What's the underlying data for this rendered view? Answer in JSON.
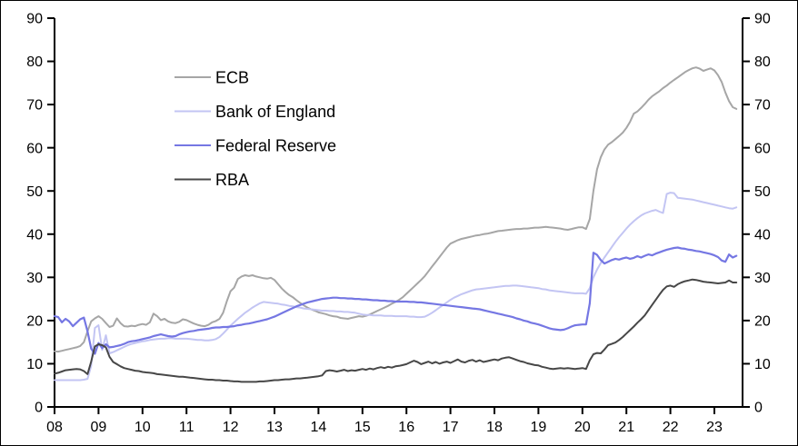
{
  "window": {
    "background": "#ffffff",
    "border_color": "#000000"
  },
  "chart_data": {
    "type": "line",
    "title": "",
    "description": "Four-line time series, monthly Jan 2008 - Jul 2023, dual identical y-axes 0-90, no gridlines, legend inside upper-left",
    "grid": false,
    "legend_position": "upper-left-inside",
    "x_axis": {
      "start_year": 2008,
      "months_per_point": 1,
      "tick_labels": [
        "08",
        "09",
        "10",
        "11",
        "12",
        "13",
        "14",
        "15",
        "16",
        "17",
        "18",
        "19",
        "20",
        "21",
        "22",
        "23"
      ]
    },
    "y_axis": {
      "range": [
        0,
        90
      ],
      "ticks": [
        0,
        10,
        20,
        30,
        40,
        50,
        60,
        70,
        80,
        90
      ],
      "sides": "both"
    },
    "axis_color": "#000000",
    "series": [
      {
        "name": "ECB",
        "color": "#a6a6a6",
        "width": 2,
        "values": [
          12.9,
          12.8,
          13.0,
          13.2,
          13.4,
          13.6,
          13.8,
          14.1,
          15.0,
          17.5,
          19.8,
          20.5,
          21.0,
          20.4,
          19.4,
          18.5,
          18.8,
          20.5,
          19.4,
          18.7,
          18.6,
          18.8,
          18.7,
          19.0,
          19.2,
          19.0,
          19.6,
          21.6,
          21.0,
          20.1,
          20.4,
          19.8,
          19.5,
          19.4,
          19.7,
          20.3,
          20.1,
          19.7,
          19.3,
          19.0,
          18.8,
          18.7,
          19.0,
          19.6,
          19.9,
          20.4,
          21.8,
          24.5,
          26.8,
          27.6,
          29.6,
          30.2,
          30.5,
          30.3,
          30.5,
          30.2,
          30.0,
          29.8,
          29.7,
          29.9,
          29.4,
          28.4,
          27.4,
          26.6,
          25.9,
          25.4,
          24.7,
          24.1,
          23.5,
          23.0,
          22.6,
          22.3,
          21.9,
          21.7,
          21.5,
          21.2,
          21.0,
          20.9,
          20.6,
          20.5,
          20.4,
          20.6,
          20.8,
          21.0,
          20.9,
          21.1,
          21.4,
          21.8,
          22.2,
          22.6,
          23.0,
          23.4,
          23.9,
          24.3,
          24.8,
          25.4,
          26.2,
          27.0,
          27.8,
          28.6,
          29.4,
          30.3,
          31.4,
          32.5,
          33.6,
          34.7,
          35.8,
          36.9,
          37.8,
          38.2,
          38.6,
          38.9,
          39.1,
          39.3,
          39.5,
          39.7,
          39.8,
          40.0,
          40.1,
          40.3,
          40.5,
          40.7,
          40.8,
          40.9,
          41.0,
          41.1,
          41.2,
          41.2,
          41.3,
          41.3,
          41.4,
          41.5,
          41.5,
          41.6,
          41.7,
          41.6,
          41.5,
          41.4,
          41.3,
          41.1,
          41.0,
          41.2,
          41.4,
          41.6,
          41.6,
          41.2,
          43.5,
          50.0,
          55.0,
          57.8,
          59.6,
          60.7,
          61.3,
          62.0,
          62.7,
          63.5,
          64.6,
          66.0,
          67.9,
          68.4,
          69.2,
          70.1,
          71.1,
          71.9,
          72.5,
          73.1,
          73.8,
          74.4,
          75.1,
          75.7,
          76.3,
          76.9,
          77.5,
          78.0,
          78.4,
          78.6,
          78.3,
          77.8,
          78.1,
          78.4,
          77.9,
          76.8,
          75.2,
          72.8,
          70.8,
          69.4,
          69.0
        ]
      },
      {
        "name": "Bank of England",
        "color": "#c3c5f3",
        "width": 2,
        "values": [
          6.2,
          6.2,
          6.2,
          6.2,
          6.2,
          6.2,
          6.2,
          6.2,
          6.3,
          6.5,
          9.5,
          18.3,
          18.9,
          13.2,
          16.6,
          12.4,
          12.7,
          13.1,
          13.5,
          13.9,
          14.3,
          14.6,
          14.8,
          15.0,
          15.2,
          15.3,
          15.5,
          15.6,
          15.7,
          15.8,
          15.8,
          15.9,
          15.9,
          15.8,
          15.8,
          15.8,
          15.8,
          15.7,
          15.6,
          15.5,
          15.5,
          15.4,
          15.4,
          15.5,
          15.7,
          16.2,
          17.0,
          17.9,
          18.8,
          19.6,
          20.4,
          21.1,
          21.8,
          22.4,
          23.0,
          23.5,
          24.0,
          24.3,
          24.2,
          24.1,
          24.0,
          23.9,
          23.7,
          23.6,
          23.4,
          23.3,
          23.1,
          23.0,
          22.8,
          22.7,
          22.6,
          22.5,
          22.4,
          22.3,
          22.3,
          22.2,
          22.2,
          22.1,
          22.1,
          22.0,
          22.0,
          21.9,
          21.8,
          21.6,
          21.4,
          21.3,
          21.3,
          21.2,
          21.2,
          21.2,
          21.1,
          21.1,
          21.1,
          21.0,
          21.0,
          21.0,
          21.0,
          20.9,
          20.9,
          20.8,
          20.8,
          20.9,
          21.3,
          21.8,
          22.4,
          23.0,
          23.6,
          24.2,
          24.8,
          25.3,
          25.7,
          26.1,
          26.4,
          26.7,
          27.0,
          27.2,
          27.3,
          27.4,
          27.5,
          27.6,
          27.7,
          27.8,
          27.9,
          28.0,
          28.0,
          28.1,
          28.1,
          28.0,
          27.9,
          27.8,
          27.7,
          27.6,
          27.5,
          27.3,
          27.2,
          27.0,
          26.9,
          26.8,
          26.7,
          26.6,
          26.5,
          26.4,
          26.3,
          26.3,
          26.3,
          26.2,
          27.5,
          30.0,
          31.8,
          33.3,
          34.6,
          35.8,
          37.0,
          38.2,
          39.3,
          40.3,
          41.3,
          42.2,
          43.0,
          43.7,
          44.3,
          44.8,
          45.1,
          45.4,
          45.6,
          45.2,
          44.9,
          49.3,
          49.6,
          49.5,
          48.4,
          48.3,
          48.2,
          48.1,
          48.0,
          47.8,
          47.6,
          47.4,
          47.2,
          47.0,
          46.8,
          46.6,
          46.4,
          46.2,
          46.0,
          45.9,
          46.2
        ]
      },
      {
        "name": "Federal Reserve",
        "color": "#7577e3",
        "width": 2.2,
        "values": [
          21.0,
          20.8,
          19.6,
          20.4,
          19.8,
          18.7,
          19.5,
          20.3,
          20.7,
          17.5,
          13.5,
          12.3,
          14.8,
          13.6,
          14.5,
          13.8,
          13.9,
          14.1,
          14.3,
          14.6,
          15.0,
          15.2,
          15.3,
          15.5,
          15.7,
          15.9,
          16.1,
          16.4,
          16.6,
          16.8,
          16.6,
          16.4,
          16.3,
          16.4,
          16.8,
          17.1,
          17.3,
          17.5,
          17.6,
          17.8,
          17.9,
          18.0,
          18.1,
          18.3,
          18.4,
          18.4,
          18.5,
          18.5,
          18.6,
          18.7,
          18.9,
          19.0,
          19.2,
          19.3,
          19.5,
          19.7,
          19.9,
          20.1,
          20.3,
          20.6,
          20.9,
          21.3,
          21.7,
          22.1,
          22.5,
          22.9,
          23.3,
          23.6,
          23.9,
          24.2,
          24.4,
          24.6,
          24.8,
          25.0,
          25.1,
          25.2,
          25.3,
          25.3,
          25.2,
          25.2,
          25.1,
          25.1,
          25.0,
          25.0,
          24.9,
          24.9,
          24.8,
          24.7,
          24.7,
          24.6,
          24.6,
          24.5,
          24.5,
          24.4,
          24.4,
          24.4,
          24.4,
          24.3,
          24.3,
          24.2,
          24.2,
          24.1,
          24.0,
          23.9,
          23.8,
          23.7,
          23.6,
          23.5,
          23.4,
          23.3,
          23.2,
          23.1,
          23.0,
          22.9,
          22.8,
          22.7,
          22.6,
          22.4,
          22.2,
          22.0,
          21.8,
          21.6,
          21.4,
          21.2,
          21.0,
          20.8,
          20.5,
          20.3,
          20.0,
          19.8,
          19.5,
          19.3,
          19.1,
          18.8,
          18.5,
          18.2,
          18.0,
          17.9,
          17.8,
          17.9,
          18.2,
          18.6,
          18.9,
          19.0,
          19.1,
          19.1,
          24.0,
          35.7,
          35.2,
          34.0,
          33.2,
          33.6,
          34.0,
          34.3,
          34.1,
          34.4,
          34.6,
          34.3,
          34.5,
          34.9,
          34.6,
          35.0,
          35.3,
          35.1,
          35.5,
          35.8,
          36.1,
          36.4,
          36.6,
          36.8,
          36.9,
          36.7,
          36.6,
          36.4,
          36.3,
          36.1,
          36.0,
          35.8,
          35.6,
          35.4,
          35.1,
          34.7,
          33.9,
          33.6,
          35.3,
          34.6,
          35.0
        ]
      },
      {
        "name": "RBA",
        "color": "#474747",
        "width": 2,
        "values": [
          7.7,
          7.9,
          8.2,
          8.5,
          8.6,
          8.7,
          8.8,
          8.7,
          8.3,
          7.6,
          10.5,
          14.0,
          14.5,
          14.3,
          13.8,
          11.6,
          10.4,
          9.9,
          9.4,
          9.0,
          8.8,
          8.6,
          8.4,
          8.3,
          8.1,
          8.0,
          7.9,
          7.8,
          7.6,
          7.5,
          7.4,
          7.3,
          7.2,
          7.1,
          7.0,
          7.0,
          6.9,
          6.8,
          6.7,
          6.6,
          6.5,
          6.4,
          6.3,
          6.3,
          6.2,
          6.2,
          6.1,
          6.1,
          6.0,
          5.9,
          5.9,
          5.8,
          5.8,
          5.8,
          5.8,
          5.8,
          5.9,
          5.9,
          6.0,
          6.1,
          6.2,
          6.2,
          6.3,
          6.4,
          6.4,
          6.5,
          6.6,
          6.6,
          6.7,
          6.8,
          6.9,
          7.0,
          7.1,
          7.3,
          8.3,
          8.5,
          8.4,
          8.2,
          8.4,
          8.6,
          8.3,
          8.5,
          8.4,
          8.6,
          8.8,
          8.6,
          8.9,
          8.7,
          9.0,
          9.2,
          9.0,
          9.3,
          9.1,
          9.4,
          9.5,
          9.7,
          9.9,
          10.3,
          10.7,
          10.4,
          9.9,
          10.2,
          10.5,
          10.1,
          10.4,
          10.0,
          10.3,
          10.5,
          10.2,
          10.6,
          11.0,
          10.5,
          10.3,
          10.7,
          10.9,
          10.5,
          10.8,
          10.4,
          10.6,
          10.8,
          11.0,
          10.8,
          11.2,
          11.4,
          11.5,
          11.2,
          10.9,
          10.6,
          10.4,
          10.1,
          9.9,
          9.7,
          9.6,
          9.3,
          9.1,
          8.9,
          8.8,
          8.9,
          9.0,
          8.9,
          9.0,
          8.9,
          8.8,
          8.9,
          9.0,
          8.8,
          10.8,
          12.2,
          12.5,
          12.4,
          13.3,
          14.3,
          14.6,
          14.9,
          15.5,
          16.2,
          17.0,
          17.8,
          18.6,
          19.5,
          20.3,
          21.2,
          22.4,
          23.6,
          24.8,
          26.0,
          27.1,
          27.9,
          28.1,
          27.8,
          28.4,
          28.8,
          29.1,
          29.3,
          29.5,
          29.4,
          29.2,
          29.0,
          28.9,
          28.8,
          28.7,
          28.6,
          28.7,
          28.8,
          29.3,
          28.8,
          28.8
        ]
      }
    ]
  }
}
